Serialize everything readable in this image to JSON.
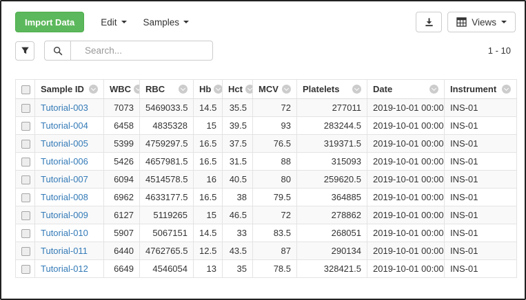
{
  "toolbar": {
    "import_button_label": "Import Data",
    "edit_menu_label": "Edit",
    "samples_menu_label": "Samples",
    "views_button_label": "Views"
  },
  "search": {
    "placeholder": "Search..."
  },
  "pagination": {
    "range_label": "1 - 10"
  },
  "colors": {
    "accent_green": "#5cb85c",
    "link_blue": "#337ab7",
    "border_gray": "#ddd",
    "stripe_gray": "#f9f9f9"
  },
  "icons": {
    "filter": "funnel-icon",
    "search": "magnifier-icon",
    "export": "download-icon",
    "views": "table-grid-icon",
    "menu_caret": "caret-down-icon",
    "column_sort": "chevron-down-circle-icon"
  },
  "table": {
    "columns": [
      "Sample ID",
      "WBC",
      "RBC",
      "Hb",
      "Hct",
      "MCV",
      "Platelets",
      "Date",
      "Instrument"
    ],
    "rows": [
      [
        "Tutorial-003",
        "7073",
        "5469033.5",
        "14.5",
        "35.5",
        "72",
        "277011",
        "2019-10-01 00:00",
        "INS-01"
      ],
      [
        "Tutorial-004",
        "6458",
        "4835328",
        "15",
        "39.5",
        "93",
        "283244.5",
        "2019-10-01 00:00",
        "INS-01"
      ],
      [
        "Tutorial-005",
        "5399",
        "4759297.5",
        "16.5",
        "37.5",
        "76.5",
        "319371.5",
        "2019-10-01 00:00",
        "INS-01"
      ],
      [
        "Tutorial-006",
        "5426",
        "4657981.5",
        "16.5",
        "31.5",
        "88",
        "315093",
        "2019-10-01 00:00",
        "INS-01"
      ],
      [
        "Tutorial-007",
        "6094",
        "4514578.5",
        "16",
        "40.5",
        "80",
        "259620.5",
        "2019-10-01 00:00",
        "INS-01"
      ],
      [
        "Tutorial-008",
        "6962",
        "4633177.5",
        "16.5",
        "38",
        "79.5",
        "364885",
        "2019-10-01 00:00",
        "INS-01"
      ],
      [
        "Tutorial-009",
        "6127",
        "5119265",
        "15",
        "46.5",
        "72",
        "278862",
        "2019-10-01 00:00",
        "INS-01"
      ],
      [
        "Tutorial-010",
        "5907",
        "5067151",
        "14.5",
        "33",
        "83.5",
        "268051",
        "2019-10-01 00:00",
        "INS-01"
      ],
      [
        "Tutorial-011",
        "6440",
        "4762765.5",
        "12.5",
        "43.5",
        "87",
        "290134",
        "2019-10-01 00:00",
        "INS-01"
      ],
      [
        "Tutorial-012",
        "6649",
        "4546054",
        "13",
        "35",
        "78.5",
        "328421.5",
        "2019-10-01 00:00",
        "INS-01"
      ]
    ]
  }
}
